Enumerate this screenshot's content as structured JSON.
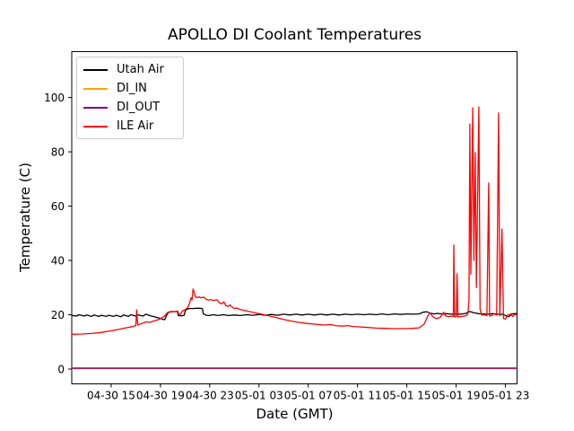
{
  "figure": {
    "background": "#ffffff"
  },
  "chart_data": {
    "type": "line",
    "title": "APOLLO DI Coolant Temperatures",
    "xlabel": "Date (GMT)",
    "ylabel": "Temperature (C)",
    "grid": false,
    "legend_position": "upper left",
    "x_encoding": "hours, 0 = 04-30 12:00 GMT",
    "x_axis": {
      "lim": [
        -0.2,
        35.95
      ],
      "ticks": [
        {
          "x": 3,
          "label": "04-30 15"
        },
        {
          "x": 7,
          "label": "04-30 19"
        },
        {
          "x": 11,
          "label": "04-30 23"
        },
        {
          "x": 15,
          "label": "05-01 03"
        },
        {
          "x": 19,
          "label": "05-01 07"
        },
        {
          "x": 23,
          "label": "05-01 11"
        },
        {
          "x": 27,
          "label": "05-01 15"
        },
        {
          "x": 31,
          "label": "05-01 19"
        },
        {
          "x": 35,
          "label": "05-01 23"
        }
      ]
    },
    "y_axis": {
      "lim": [
        -5.45,
        116.9
      ],
      "ticks": [
        0,
        20,
        40,
        60,
        80,
        100
      ]
    },
    "series": [
      {
        "name": "Utah Air",
        "color": "#000000",
        "points": [
          [
            -0.2,
            19.7
          ],
          [
            0.2,
            19.5
          ],
          [
            0.4,
            20.0
          ],
          [
            0.8,
            19.5
          ],
          [
            1.0,
            19.9
          ],
          [
            1.4,
            19.4
          ],
          [
            1.6,
            19.9
          ],
          [
            2.0,
            19.4
          ],
          [
            2.2,
            19.8
          ],
          [
            2.6,
            19.4
          ],
          [
            2.8,
            19.8
          ],
          [
            3.2,
            19.4
          ],
          [
            3.4,
            19.8
          ],
          [
            3.8,
            19.3
          ],
          [
            4.0,
            19.9
          ],
          [
            4.4,
            19.4
          ],
          [
            4.6,
            20.0
          ],
          [
            5.0,
            19.5
          ],
          [
            5.2,
            19.9
          ],
          [
            5.6,
            19.5
          ],
          [
            5.8,
            20.2
          ],
          [
            6.2,
            19.6
          ],
          [
            6.5,
            19.3
          ],
          [
            6.9,
            18.8
          ],
          [
            7.2,
            18.3
          ],
          [
            7.35,
            18.2
          ],
          [
            7.5,
            19.8
          ],
          [
            7.65,
            20.9
          ],
          [
            7.9,
            21.1
          ],
          [
            8.2,
            21.2
          ],
          [
            8.38,
            21.3
          ],
          [
            8.45,
            19.7
          ],
          [
            8.7,
            19.6
          ],
          [
            8.93,
            19.8
          ],
          [
            9.0,
            21.3
          ],
          [
            9.1,
            21.9
          ],
          [
            9.3,
            22.3
          ],
          [
            9.6,
            22.3
          ],
          [
            9.9,
            22.4
          ],
          [
            10.2,
            22.4
          ],
          [
            10.4,
            22.3
          ],
          [
            10.48,
            20.3
          ],
          [
            10.7,
            19.8
          ],
          [
            11.0,
            19.7
          ],
          [
            11.3,
            20.0
          ],
          [
            11.7,
            19.7
          ],
          [
            12.1,
            20.0
          ],
          [
            12.5,
            19.7
          ],
          [
            13.0,
            19.9
          ],
          [
            13.5,
            19.7
          ],
          [
            14.0,
            20.0
          ],
          [
            14.5,
            19.8
          ],
          [
            15.0,
            20.1
          ],
          [
            15.5,
            19.8
          ],
          [
            16.0,
            20.1
          ],
          [
            16.5,
            19.8
          ],
          [
            17.0,
            20.2
          ],
          [
            17.5,
            19.9
          ],
          [
            18.0,
            20.2
          ],
          [
            18.5,
            19.9
          ],
          [
            19.0,
            20.2
          ],
          [
            19.5,
            19.9
          ],
          [
            20.0,
            20.2
          ],
          [
            20.5,
            19.9
          ],
          [
            21.0,
            20.2
          ],
          [
            21.5,
            19.9
          ],
          [
            22.0,
            20.2
          ],
          [
            22.5,
            20.0
          ],
          [
            23.0,
            20.2
          ],
          [
            23.5,
            20.0
          ],
          [
            24.0,
            20.2
          ],
          [
            24.5,
            20.0
          ],
          [
            25.0,
            20.3
          ],
          [
            25.5,
            20.0
          ],
          [
            26.0,
            20.3
          ],
          [
            26.5,
            20.1
          ],
          [
            27.0,
            20.3
          ],
          [
            27.5,
            20.2
          ],
          [
            28.0,
            20.3
          ],
          [
            28.3,
            20.9
          ],
          [
            28.6,
            21.1
          ],
          [
            28.9,
            20.6
          ],
          [
            29.2,
            20.3
          ],
          [
            29.5,
            20.5
          ],
          [
            29.8,
            20.3
          ],
          [
            30.2,
            20.4
          ],
          [
            30.6,
            20.2
          ],
          [
            31.0,
            20.3
          ],
          [
            31.4,
            20.2
          ],
          [
            31.8,
            20.5
          ],
          [
            32.1,
            21.2
          ],
          [
            32.4,
            20.8
          ],
          [
            32.8,
            20.4
          ],
          [
            33.2,
            20.3
          ],
          [
            33.6,
            20.2
          ],
          [
            34.0,
            20.4
          ],
          [
            34.4,
            20.2
          ],
          [
            34.8,
            20.1
          ],
          [
            35.1,
            19.5
          ],
          [
            35.3,
            19.3
          ],
          [
            35.5,
            20.3
          ],
          [
            35.75,
            20.4
          ],
          [
            35.95,
            20.4
          ]
        ]
      },
      {
        "name": "DI_IN",
        "color": "#ffa500",
        "points": [
          [
            -0.2,
            0.3
          ],
          [
            35.95,
            0.3
          ]
        ]
      },
      {
        "name": "DI_OUT",
        "color": "#800080",
        "points": [
          [
            -0.2,
            0.3
          ],
          [
            35.95,
            0.3
          ]
        ]
      },
      {
        "name": "ILE Air",
        "color": "#ff0000",
        "points": [
          [
            -0.2,
            12.8
          ],
          [
            0.6,
            12.9
          ],
          [
            1.4,
            13.1
          ],
          [
            2.2,
            13.5
          ],
          [
            3.0,
            14.1
          ],
          [
            3.6,
            14.6
          ],
          [
            4.2,
            15.2
          ],
          [
            4.7,
            15.6
          ],
          [
            5.0,
            16.0
          ],
          [
            5.07,
            21.8
          ],
          [
            5.15,
            16.2
          ],
          [
            5.5,
            16.8
          ],
          [
            5.9,
            17.4
          ],
          [
            6.15,
            17.2
          ],
          [
            6.5,
            17.8
          ],
          [
            6.9,
            18.3
          ],
          [
            7.3,
            19.4
          ],
          [
            7.6,
            20.9
          ],
          [
            7.9,
            21.2
          ],
          [
            8.2,
            21.1
          ],
          [
            8.4,
            21.4
          ],
          [
            8.5,
            20.0
          ],
          [
            8.65,
            20.3
          ],
          [
            8.8,
            21.5
          ],
          [
            9.0,
            21.8
          ],
          [
            9.2,
            22.6
          ],
          [
            9.35,
            24.0
          ],
          [
            9.5,
            26.3
          ],
          [
            9.57,
            25.5
          ],
          [
            9.65,
            29.5
          ],
          [
            9.75,
            28.0
          ],
          [
            9.85,
            26.6
          ],
          [
            10.0,
            26.3
          ],
          [
            10.15,
            26.6
          ],
          [
            10.3,
            26.2
          ],
          [
            10.5,
            26.5
          ],
          [
            10.7,
            25.7
          ],
          [
            10.9,
            25.4
          ],
          [
            11.1,
            25.6
          ],
          [
            11.3,
            25.3
          ],
          [
            11.6,
            25.5
          ],
          [
            11.8,
            24.3
          ],
          [
            12.0,
            24.0
          ],
          [
            12.15,
            24.8
          ],
          [
            12.3,
            23.4
          ],
          [
            12.5,
            23.1
          ],
          [
            12.65,
            23.6
          ],
          [
            12.8,
            22.9
          ],
          [
            13.0,
            22.3
          ],
          [
            13.2,
            22.5
          ],
          [
            13.5,
            21.9
          ],
          [
            13.8,
            21.6
          ],
          [
            14.2,
            21.2
          ],
          [
            14.7,
            20.7
          ],
          [
            15.2,
            20.2
          ],
          [
            15.8,
            19.6
          ],
          [
            16.4,
            19.0
          ],
          [
            17.0,
            18.3
          ],
          [
            17.6,
            17.7
          ],
          [
            18.2,
            17.2
          ],
          [
            18.9,
            16.8
          ],
          [
            19.6,
            16.5
          ],
          [
            20.3,
            16.2
          ],
          [
            20.8,
            16.4
          ],
          [
            21.2,
            16.0
          ],
          [
            21.8,
            15.8
          ],
          [
            22.2,
            16.0
          ],
          [
            22.6,
            15.7
          ],
          [
            23.2,
            15.5
          ],
          [
            23.8,
            15.3
          ],
          [
            24.5,
            15.1
          ],
          [
            25.2,
            15.0
          ],
          [
            26.0,
            14.9
          ],
          [
            26.8,
            14.9
          ],
          [
            27.5,
            15.0
          ],
          [
            28.0,
            15.2
          ],
          [
            28.4,
            16.5
          ],
          [
            28.7,
            19.5
          ],
          [
            28.9,
            20.7
          ],
          [
            29.1,
            19.3
          ],
          [
            29.4,
            18.6
          ],
          [
            29.7,
            19.0
          ],
          [
            30.0,
            20.9
          ],
          [
            30.15,
            19.6
          ],
          [
            30.4,
            19.3
          ],
          [
            30.6,
            19.5
          ],
          [
            30.78,
            19.4
          ],
          [
            30.82,
            45.7
          ],
          [
            30.88,
            19.2
          ],
          [
            31.02,
            19.3
          ],
          [
            31.08,
            35.0
          ],
          [
            31.15,
            19.2
          ],
          [
            31.5,
            19.4
          ],
          [
            31.8,
            19.6
          ],
          [
            31.95,
            20.3
          ],
          [
            32.05,
            25.0
          ],
          [
            32.12,
            90.2
          ],
          [
            32.2,
            35.0
          ],
          [
            32.35,
            96.2
          ],
          [
            32.45,
            40.0
          ],
          [
            32.55,
            79.7
          ],
          [
            32.65,
            30.0
          ],
          [
            32.85,
            96.5
          ],
          [
            32.95,
            22.0
          ],
          [
            33.1,
            19.8
          ],
          [
            33.3,
            20.0
          ],
          [
            33.5,
            19.6
          ],
          [
            33.65,
            68.5
          ],
          [
            33.72,
            19.5
          ],
          [
            33.9,
            19.7
          ],
          [
            34.1,
            20.4
          ],
          [
            34.3,
            19.8
          ],
          [
            34.45,
            94.3
          ],
          [
            34.55,
            19.6
          ],
          [
            34.73,
            51.6
          ],
          [
            34.85,
            18.6
          ],
          [
            35.0,
            18.4
          ],
          [
            35.2,
            19.9
          ],
          [
            35.45,
            20.2
          ],
          [
            35.6,
            19.4
          ],
          [
            35.75,
            20.1
          ],
          [
            35.95,
            19.9
          ]
        ]
      }
    ]
  }
}
